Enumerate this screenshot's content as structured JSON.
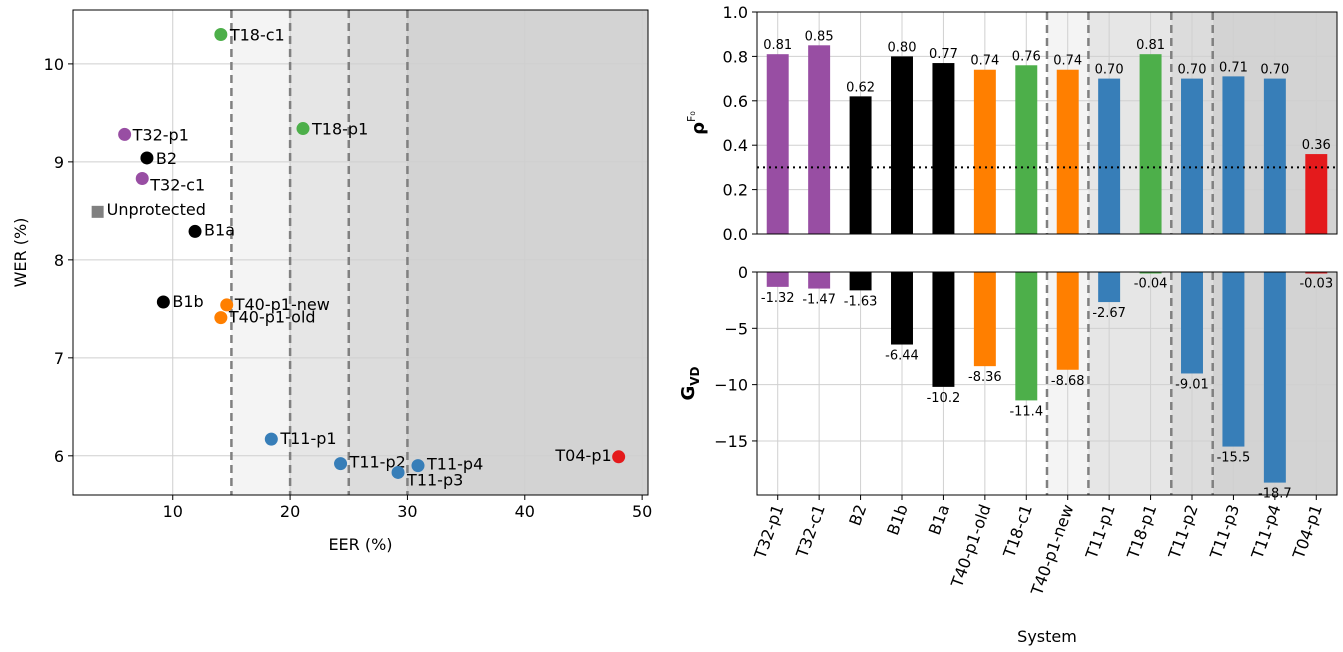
{
  "chart_data": [
    {
      "type": "scatter",
      "xlabel": "EER (%)",
      "ylabel": "WER (%)",
      "xlim": [
        1.5,
        50.5
      ],
      "ylim": [
        5.6,
        10.55
      ],
      "xticks": [
        10,
        20,
        30,
        40,
        50
      ],
      "yticks": [
        6,
        7,
        8,
        9,
        10
      ],
      "xtick_labels": [
        "10",
        "20",
        "30",
        "40",
        "50"
      ],
      "ytick_labels": [
        "6",
        "7",
        "8",
        "9",
        "10"
      ],
      "grid": true,
      "threshold_lines_x": [
        15,
        20,
        25,
        30
      ],
      "points": [
        {
          "label": "T18-c1",
          "x": 14.1,
          "y": 10.3,
          "color": "#4daf4a",
          "marker": "circle"
        },
        {
          "label": "T18-p1",
          "x": 21.1,
          "y": 9.34,
          "color": "#4daf4a",
          "marker": "circle"
        },
        {
          "label": "T32-p1",
          "x": 5.9,
          "y": 9.28,
          "color": "#984ea3",
          "marker": "circle"
        },
        {
          "label": "B2",
          "x": 7.8,
          "y": 9.04,
          "color": "#000000",
          "marker": "circle"
        },
        {
          "label": "T32-c1",
          "x": 7.4,
          "y": 8.83,
          "color": "#984ea3",
          "marker": "circle"
        },
        {
          "label": "Unprotected",
          "x": 3.6,
          "y": 8.49,
          "color": "#808080",
          "marker": "square"
        },
        {
          "label": "B1a",
          "x": 11.9,
          "y": 8.29,
          "color": "#000000",
          "marker": "circle"
        },
        {
          "label": "B1b",
          "x": 9.2,
          "y": 7.57,
          "color": "#000000",
          "marker": "circle"
        },
        {
          "label": "T40-p1-new",
          "x": 14.6,
          "y": 7.54,
          "color": "#ff7f00",
          "marker": "circle"
        },
        {
          "label": "T40-p1-old",
          "x": 14.1,
          "y": 7.41,
          "color": "#ff7f00",
          "marker": "circle"
        },
        {
          "label": "T11-p1",
          "x": 18.4,
          "y": 6.17,
          "color": "#377eb8",
          "marker": "circle"
        },
        {
          "label": "T11-p2",
          "x": 24.3,
          "y": 5.92,
          "color": "#377eb8",
          "marker": "circle"
        },
        {
          "label": "T11-p3",
          "x": 29.2,
          "y": 5.83,
          "color": "#377eb8",
          "marker": "circle"
        },
        {
          "label": "T11-p4",
          "x": 30.9,
          "y": 5.9,
          "color": "#377eb8",
          "marker": "circle"
        },
        {
          "label": "T04-p1",
          "x": 48.0,
          "y": 5.99,
          "color": "#e41a1c",
          "marker": "circle"
        }
      ]
    },
    {
      "type": "bar",
      "xlabel": "System",
      "ylabel_top": "ρ",
      "ylabel_top_sup": "F₀",
      "ylabel_bottom": "G",
      "ylabel_bottom_sub": "VD",
      "categories": [
        "T32-p1",
        "T32-c1",
        "B2",
        "B1b",
        "B1a",
        "T40-p1-old",
        "T18-c1",
        "T40-p1-new",
        "T11-p1",
        "T18-p1",
        "T11-p2",
        "T11-p3",
        "T11-p4",
        "T04-p1"
      ],
      "colors": [
        "#984ea3",
        "#984ea3",
        "#000000",
        "#000000",
        "#000000",
        "#ff7f00",
        "#4daf4a",
        "#ff7f00",
        "#377eb8",
        "#4daf4a",
        "#377eb8",
        "#377eb8",
        "#377eb8",
        "#e41a1c"
      ],
      "rho_values": [
        0.81,
        0.85,
        0.62,
        0.8,
        0.77,
        0.74,
        0.76,
        0.74,
        0.7,
        0.81,
        0.7,
        0.71,
        0.7,
        0.36
      ],
      "rho_labels": [
        "0.81",
        "0.85",
        "0.62",
        "0.80",
        "0.77",
        "0.74",
        "0.76",
        "0.74",
        "0.70",
        "0.81",
        "0.70",
        "0.71",
        "0.70",
        "0.36"
      ],
      "rho_ylim": [
        0,
        1.0
      ],
      "rho_yticks": [
        0.0,
        0.2,
        0.4,
        0.6,
        0.8,
        1.0
      ],
      "rho_ytick_labels": [
        "0.0",
        "0.2",
        "0.4",
        "0.6",
        "0.8",
        "1.0"
      ],
      "rho_threshold": 0.3,
      "gvd_values": [
        -1.32,
        -1.47,
        -1.63,
        -6.44,
        -10.2,
        -8.36,
        -11.4,
        -8.68,
        -2.67,
        -0.04,
        -9.01,
        -15.5,
        -18.7,
        -0.03
      ],
      "gvd_labels": [
        "-1.32",
        "-1.47",
        "-1.63",
        "-6.44",
        "-10.2",
        "-8.36",
        "-11.4",
        "-8.68",
        "-2.67",
        "-0.04",
        "-9.01",
        "-15.5",
        "-18.7",
        "-0.03"
      ],
      "gvd_ylim": [
        -19.8,
        0
      ],
      "gvd_yticks": [
        0,
        -5,
        -10,
        -15
      ],
      "gvd_ytick_labels": [
        "0",
        "−5",
        "−10",
        "−15"
      ],
      "grid": true,
      "region_boundaries_after_index": [
        6,
        7,
        9,
        10
      ]
    }
  ]
}
